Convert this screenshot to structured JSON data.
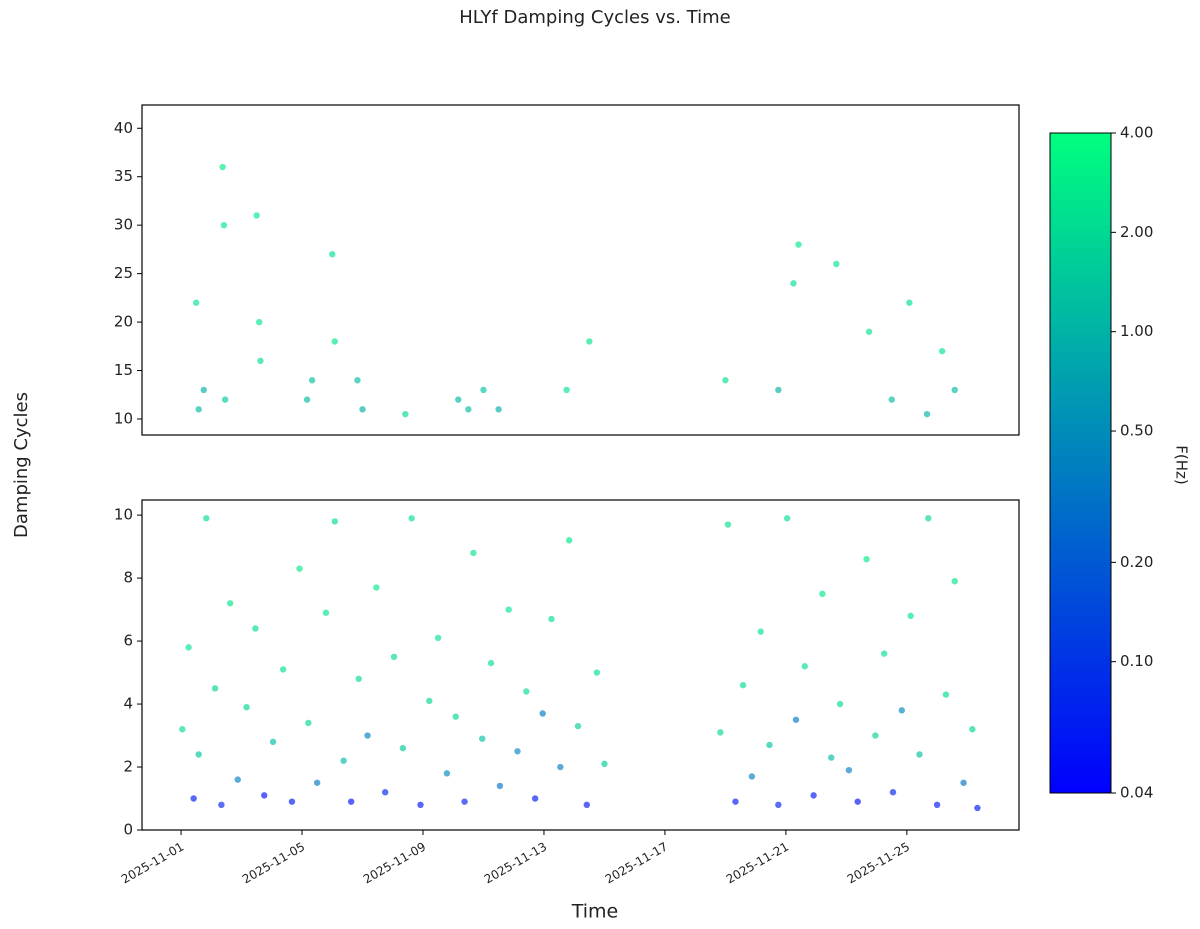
{
  "chart_data": [
    {
      "type": "scatter",
      "title": "HLYf Damping Cycles vs. Time",
      "ylabel": "Damping Cycles",
      "xlim": [
        "2025-10-30 17:00",
        "2025-11-28 17:00"
      ],
      "ylim": [
        8.35,
        42.4
      ],
      "yticks": [
        10,
        15,
        20,
        25,
        30,
        35,
        40
      ],
      "x": [
        "2025-11-01 12:00",
        "2025-11-01 14:00",
        "2025-11-01 18:00",
        "2025-11-02 09:00",
        "2025-11-02 10:00",
        "2025-11-02 11:00",
        "2025-11-03 12:00",
        "2025-11-03 14:00",
        "2025-11-03 15:00",
        "2025-11-05 04:00",
        "2025-11-05 08:00",
        "2025-11-06 00:00",
        "2025-11-06 02:00",
        "2025-11-06 20:00",
        "2025-11-07 00:00",
        "2025-11-08 10:00",
        "2025-11-10 04:00",
        "2025-11-10 12:00",
        "2025-11-11 00:00",
        "2025-11-11 12:00",
        "2025-11-13 18:00",
        "2025-11-14 12:00",
        "2025-11-19 00:00",
        "2025-11-20 18:00",
        "2025-11-21 06:00",
        "2025-11-21 10:00",
        "2025-11-22 16:00",
        "2025-11-23 18:00",
        "2025-11-24 12:00",
        "2025-11-25 02:00",
        "2025-11-25 16:00",
        "2025-11-26 04:00",
        "2025-11-26 14:00"
      ],
      "values": [
        22,
        11,
        13,
        36,
        30,
        12,
        31,
        20,
        16,
        12,
        14,
        27,
        18,
        14,
        11,
        10.5,
        12,
        11,
        13,
        11,
        13,
        18,
        14,
        13,
        24,
        28,
        26,
        19,
        12,
        22,
        10.5,
        17,
        13
      ],
      "c": [
        2.5,
        1.2,
        1.0,
        2.8,
        2.6,
        1.5,
        2.7,
        2.5,
        2.2,
        1.1,
        1.3,
        2.4,
        2.6,
        1.2,
        1.0,
        2.0,
        1.1,
        1.2,
        1.3,
        1.0,
        2.5,
        2.6,
        2.4,
        1.0,
        2.3,
        2.7,
        2.6,
        2.5,
        1.1,
        2.2,
        1.0,
        2.4,
        1.2
      ],
      "colorbar": {
        "label": "F(Hz)",
        "lim": [
          0.04,
          4
        ],
        "log": true,
        "colormap": "winter",
        "ticks": [
          0.04,
          {
            "value": 0.1,
            "label": "0.10"
          },
          {
            "value": 0.2,
            "label": "0.20"
          },
          {
            "value": 0.5,
            "label": "0.50"
          },
          {
            "value": 1,
            "label": "1.00"
          },
          {
            "value": 2,
            "label": "2.00"
          },
          {
            "value": 4,
            "label": "4.00"
          }
        ]
      }
    },
    {
      "type": "scatter",
      "xlabel": "Time",
      "xlim": [
        "2025-10-30 17:00",
        "2025-11-28 17:00"
      ],
      "ylim": [
        0,
        10.48
      ],
      "yticks": [
        0,
        2,
        4,
        6,
        8,
        10
      ],
      "xticks": [
        "2025-11-01",
        "2025-11-05",
        "2025-11-09",
        "2025-11-13",
        "2025-11-17",
        "2025-11-21",
        "2025-11-25"
      ],
      "x": [
        "2025-11-01 01:00",
        "2025-11-01 06:00",
        "2025-11-01 10:00",
        "2025-11-01 14:00",
        "2025-11-01 20:00",
        "2025-11-02 03:00",
        "2025-11-02 08:00",
        "2025-11-02 15:00",
        "2025-11-02 21:00",
        "2025-11-03 04:00",
        "2025-11-03 11:00",
        "2025-11-03 18:00",
        "2025-11-04 01:00",
        "2025-11-04 09:00",
        "2025-11-04 16:00",
        "2025-11-04 22:00",
        "2025-11-05 05:00",
        "2025-11-05 12:00",
        "2025-11-05 19:00",
        "2025-11-06 02:00",
        "2025-11-06 09:00",
        "2025-11-06 15:00",
        "2025-11-06 21:00",
        "2025-11-07 04:00",
        "2025-11-07 11:00",
        "2025-11-07 18:00",
        "2025-11-08 01:00",
        "2025-11-08 08:00",
        "2025-11-08 15:00",
        "2025-11-08 22:00",
        "2025-11-09 05:00",
        "2025-11-09 12:00",
        "2025-11-09 19:00",
        "2025-11-10 02:00",
        "2025-11-10 09:00",
        "2025-11-10 16:00",
        "2025-11-10 23:00",
        "2025-11-11 06:00",
        "2025-11-11 13:00",
        "2025-11-11 20:00",
        "2025-11-12 03:00",
        "2025-11-12 10:00",
        "2025-11-12 17:00",
        "2025-11-12 23:00",
        "2025-11-13 06:00",
        "2025-11-13 13:00",
        "2025-11-13 20:00",
        "2025-11-14 03:00",
        "2025-11-14 10:00",
        "2025-11-14 18:00",
        "2025-11-15 00:00",
        "2025-11-18 20:00",
        "2025-11-19 02:00",
        "2025-11-19 08:00",
        "2025-11-19 14:00",
        "2025-11-19 21:00",
        "2025-11-20 04:00",
        "2025-11-20 11:00",
        "2025-11-20 18:00",
        "2025-11-21 01:00",
        "2025-11-21 08:00",
        "2025-11-21 15:00",
        "2025-11-21 22:00",
        "2025-11-22 05:00",
        "2025-11-22 12:00",
        "2025-11-22 19:00",
        "2025-11-23 02:00",
        "2025-11-23 09:00",
        "2025-11-23 16:00",
        "2025-11-23 23:00",
        "2025-11-24 06:00",
        "2025-11-24 13:00",
        "2025-11-24 20:00",
        "2025-11-25 03:00",
        "2025-11-25 10:00",
        "2025-11-25 17:00",
        "2025-11-26 00:00",
        "2025-11-26 07:00",
        "2025-11-26 14:00",
        "2025-11-26 21:00",
        "2025-11-27 04:00",
        "2025-11-27 08:00"
      ],
      "values": [
        3.2,
        5.8,
        1.0,
        2.4,
        9.9,
        4.5,
        0.8,
        7.2,
        1.6,
        3.9,
        6.4,
        1.1,
        2.8,
        5.1,
        0.9,
        8.3,
        3.4,
        1.5,
        6.9,
        9.8,
        2.2,
        0.9,
        4.8,
        3.0,
        7.7,
        1.2,
        5.5,
        2.6,
        9.9,
        0.8,
        4.1,
        6.1,
        1.8,
        3.6,
        0.9,
        8.8,
        2.9,
        5.3,
        1.4,
        7.0,
        2.5,
        4.4,
        1.0,
        3.7,
        6.7,
        2.0,
        9.2,
        3.3,
        0.8,
        5.0,
        2.1,
        3.1,
        9.7,
        0.9,
        4.6,
        1.7,
        6.3,
        2.7,
        0.8,
        9.9,
        3.5,
        5.2,
        1.1,
        7.5,
        2.3,
        4.0,
        1.9,
        0.9,
        8.6,
        3.0,
        5.6,
        1.2,
        3.8,
        6.8,
        2.4,
        9.9,
        0.8,
        4.3,
        7.9,
        1.5,
        3.2,
        0.7
      ],
      "c": [
        2.1,
        2.5,
        0.06,
        1.4,
        2.2,
        1.8,
        0.07,
        2.6,
        0.4,
        2.0,
        2.3,
        0.05,
        1.2,
        2.4,
        0.06,
        2.8,
        1.9,
        0.35,
        2.5,
        2.0,
        1.1,
        0.05,
        2.2,
        0.4,
        2.7,
        0.07,
        2.1,
        1.5,
        2.3,
        0.06,
        1.9,
        2.4,
        0.5,
        2.0,
        0.07,
        2.6,
        1.3,
        2.2,
        0.3,
        2.5,
        0.45,
        2.1,
        0.06,
        0.35,
        2.3,
        0.4,
        2.7,
        1.7,
        0.06,
        2.2,
        1.6,
        2.0,
        2.4,
        0.06,
        2.1,
        0.4,
        2.5,
        1.4,
        0.07,
        2.2,
        0.35,
        2.3,
        0.06,
        2.6,
        1.2,
        2.0,
        0.4,
        0.05,
        2.7,
        1.8,
        2.3,
        0.07,
        0.45,
        2.5,
        1.3,
        1.9,
        0.06,
        2.1,
        2.6,
        0.3,
        1.9,
        0.06
      ]
    }
  ]
}
